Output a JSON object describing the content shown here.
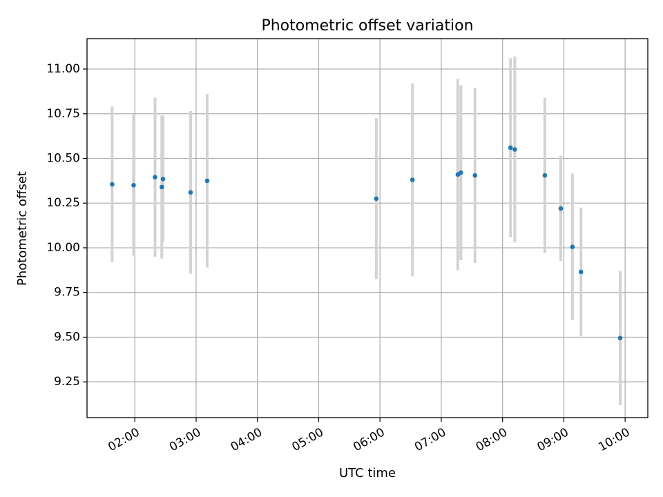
{
  "chart_data": {
    "type": "scatter",
    "title": "Photometric offset variation",
    "xlabel": "UTC time",
    "ylabel": "Photometric offset",
    "xlim_hours": [
      1.22,
      10.37
    ],
    "ylim": [
      9.05,
      11.17
    ],
    "grid": true,
    "x_ticks": [
      {
        "hour": 2,
        "label": "02:00"
      },
      {
        "hour": 3,
        "label": "03:00"
      },
      {
        "hour": 4,
        "label": "04:00"
      },
      {
        "hour": 5,
        "label": "05:00"
      },
      {
        "hour": 6,
        "label": "06:00"
      },
      {
        "hour": 7,
        "label": "07:00"
      },
      {
        "hour": 8,
        "label": "08:00"
      },
      {
        "hour": 9,
        "label": "09:00"
      },
      {
        "hour": 10,
        "label": "10:00"
      }
    ],
    "y_ticks": [
      {
        "value": 9.25,
        "label": "9.25"
      },
      {
        "value": 9.5,
        "label": "9.50"
      },
      {
        "value": 9.75,
        "label": "9.75"
      },
      {
        "value": 10.0,
        "label": "10.00"
      },
      {
        "value": 10.25,
        "label": "10.25"
      },
      {
        "value": 10.5,
        "label": "10.50"
      },
      {
        "value": 10.75,
        "label": "10.75"
      },
      {
        "value": 11.0,
        "label": "11.00"
      }
    ],
    "points": [
      {
        "hour": 1.63,
        "y": 10.355,
        "err": 0.435
      },
      {
        "hour": 1.98,
        "y": 10.35,
        "err": 0.395
      },
      {
        "hour": 2.33,
        "y": 10.395,
        "err": 0.445
      },
      {
        "hour": 2.44,
        "y": 10.34,
        "err": 0.4
      },
      {
        "hour": 2.46,
        "y": 10.385,
        "err": 0.355
      },
      {
        "hour": 2.91,
        "y": 10.31,
        "err": 0.455
      },
      {
        "hour": 3.18,
        "y": 10.375,
        "err": 0.485
      },
      {
        "hour": 5.94,
        "y": 10.275,
        "err": 0.45
      },
      {
        "hour": 6.53,
        "y": 10.38,
        "err": 0.54
      },
      {
        "hour": 7.27,
        "y": 10.41,
        "err": 0.535
      },
      {
        "hour": 7.32,
        "y": 10.42,
        "err": 0.49
      },
      {
        "hour": 7.55,
        "y": 10.405,
        "err": 0.49
      },
      {
        "hour": 8.13,
        "y": 10.56,
        "err": 0.5
      },
      {
        "hour": 8.2,
        "y": 10.55,
        "err": 0.52
      },
      {
        "hour": 8.69,
        "y": 10.405,
        "err": 0.435
      },
      {
        "hour": 8.95,
        "y": 10.22,
        "err": 0.295
      },
      {
        "hour": 9.14,
        "y": 10.005,
        "err": 0.41
      },
      {
        "hour": 9.28,
        "y": 9.865,
        "err": 0.36
      },
      {
        "hour": 9.92,
        "y": 9.495,
        "err": 0.375
      }
    ]
  }
}
